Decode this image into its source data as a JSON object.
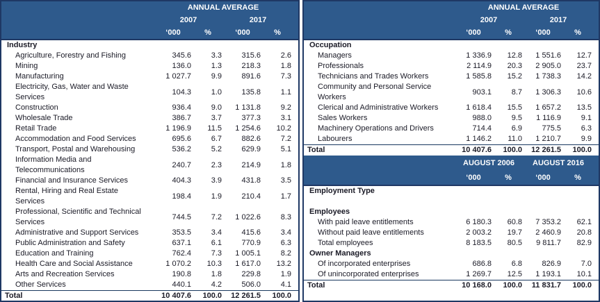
{
  "colors": {
    "header_bg": "#2E5A8C",
    "border_navy": "#1F3864",
    "body_text": "#1a1a26",
    "header_text": "#FFFFFF"
  },
  "panels": {
    "industry": {
      "header": {
        "title": "ANNUAL AVERAGE",
        "col_groups": [
          "2007",
          "2017"
        ],
        "units": [
          "‘000",
          "%",
          "‘000",
          "%"
        ]
      },
      "section_label": "Industry",
      "rows": [
        {
          "label": "Agriculture, Forestry and Fishing",
          "values": [
            "345.6",
            "3.3",
            "315.6",
            "2.6"
          ]
        },
        {
          "label": "Mining",
          "values": [
            "136.0",
            "1.3",
            "218.3",
            "1.8"
          ]
        },
        {
          "label": "Manufacturing",
          "values": [
            "1 027.7",
            "9.9",
            "891.6",
            "7.3"
          ]
        },
        {
          "label": "Electricity, Gas, Water and Waste\nServices",
          "values": [
            "104.3",
            "1.0",
            "135.8",
            "1.1"
          ]
        },
        {
          "label": "Construction",
          "values": [
            "936.4",
            "9.0",
            "1 131.8",
            "9.2"
          ]
        },
        {
          "label": "Wholesale Trade",
          "values": [
            "386.7",
            "3.7",
            "377.3",
            "3.1"
          ]
        },
        {
          "label": "Retail Trade",
          "values": [
            "1 196.9",
            "11.5",
            "1 254.6",
            "10.2"
          ]
        },
        {
          "label": "Accommodation and Food Services",
          "values": [
            "695.6",
            "6.7",
            "882.6",
            "7.2"
          ]
        },
        {
          "label": "Transport, Postal and Warehousing",
          "values": [
            "536.2",
            "5.2",
            "629.9",
            "5.1"
          ]
        },
        {
          "label": "Information Media and\nTelecommunications",
          "values": [
            "240.7",
            "2.3",
            "214.9",
            "1.8"
          ]
        },
        {
          "label": "Financial and Insurance Services",
          "values": [
            "404.3",
            "3.9",
            "431.8",
            "3.5"
          ]
        },
        {
          "label": "Rental, Hiring and Real Estate\nServices",
          "values": [
            "198.4",
            "1.9",
            "210.4",
            "1.7"
          ]
        },
        {
          "label": "Professional, Scientific and Technical\nServices",
          "values": [
            "744.5",
            "7.2",
            "1 022.6",
            "8.3"
          ]
        },
        {
          "label": "Administrative and Support Services",
          "values": [
            "353.5",
            "3.4",
            "415.6",
            "3.4"
          ]
        },
        {
          "label": "Public Administration and Safety",
          "values": [
            "637.1",
            "6.1",
            "770.9",
            "6.3"
          ]
        },
        {
          "label": "Education and Training",
          "values": [
            "762.4",
            "7.3",
            "1 005.1",
            "8.2"
          ]
        },
        {
          "label": "Health Care and Social Assistance",
          "values": [
            "1 070.2",
            "10.3",
            "1 617.0",
            "13.2"
          ]
        },
        {
          "label": "Arts and Recreation Services",
          "values": [
            "190.8",
            "1.8",
            "229.8",
            "1.9"
          ]
        },
        {
          "label": "Other Services",
          "values": [
            "440.1",
            "4.2",
            "506.0",
            "4.1"
          ]
        }
      ],
      "total": {
        "label": "Total",
        "values": [
          "10 407.6",
          "100.0",
          "12 261.5",
          "100.0"
        ]
      }
    },
    "occupation": {
      "header": {
        "title": "ANNUAL AVERAGE",
        "col_groups": [
          "2007",
          "2017"
        ],
        "units": [
          "‘000",
          "%",
          "‘000",
          "%"
        ]
      },
      "section_label": "Occupation",
      "rows": [
        {
          "label": "Managers",
          "values": [
            "1 336.9",
            "12.8",
            "1 551.6",
            "12.7"
          ]
        },
        {
          "label": "Professionals",
          "values": [
            "2 114.9",
            "20.3",
            "2 905.0",
            "23.7"
          ]
        },
        {
          "label": "Technicians and Trades Workers",
          "values": [
            "1 585.8",
            "15.2",
            "1 738.3",
            "14.2"
          ]
        },
        {
          "label": "Community and Personal Service\nWorkers",
          "values": [
            "903.1",
            "8.7",
            "1 306.3",
            "10.6"
          ]
        },
        {
          "label": "Clerical and Administrative Workers",
          "values": [
            "1 618.4",
            "15.5",
            "1 657.2",
            "13.5"
          ]
        },
        {
          "label": "Sales Workers",
          "values": [
            "988.0",
            "9.5",
            "1 116.9",
            "9.1"
          ]
        },
        {
          "label": "Machinery Operations and Drivers",
          "values": [
            "714.4",
            "6.9",
            "775.5",
            "6.3"
          ]
        },
        {
          "label": "Labourers",
          "values": [
            "1 146.2",
            "11.0",
            "1 210.7",
            "9.9"
          ]
        }
      ],
      "total": {
        "label": "Total",
        "values": [
          "10 407.6",
          "100.0",
          "12 261.5",
          "100.0"
        ]
      }
    },
    "employment_type": {
      "header": {
        "col_groups": [
          "AUGUST 2006",
          "AUGUST 2016"
        ],
        "units": [
          "‘000",
          "%",
          "‘000",
          "%"
        ]
      },
      "section_label": "Employment Type",
      "groups": [
        {
          "label": "Employees",
          "rows": [
            {
              "label": "With paid leave entitlements",
              "values": [
                "6 180.3",
                "60.8",
                "7 353.2",
                "62.1"
              ]
            },
            {
              "label": "Without paid leave entitlements",
              "values": [
                "2 003.2",
                "19.7",
                "2 460.9",
                "20.8"
              ]
            },
            {
              "label": "Total employees",
              "values": [
                "8 183.5",
                "80.5",
                "9 811.7",
                "82.9"
              ]
            }
          ]
        },
        {
          "label": "Owner Managers",
          "rows": [
            {
              "label": "Of incorporated enterprises",
              "values": [
                "686.8",
                "6.8",
                "826.9",
                "7.0"
              ]
            },
            {
              "label": "Of unincorporated enterprises",
              "values": [
                "1 269.7",
                "12.5",
                "1 193.1",
                "10.1"
              ]
            }
          ]
        }
      ],
      "total": {
        "label": "Total",
        "values": [
          "10 168.0",
          "100.0",
          "11 831.7",
          "100.0"
        ]
      }
    }
  }
}
